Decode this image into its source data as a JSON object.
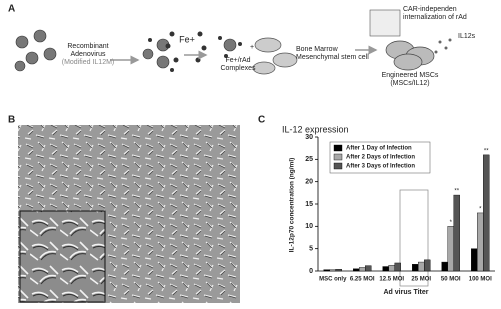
{
  "panels": [
    "A",
    "B",
    "C"
  ],
  "diagram": {
    "virus": [
      "Recombinant",
      "Adenovirus",
      "(Modified IL12M)"
    ],
    "iron": "Fe+",
    "complex": [
      "Fe+/rAd",
      "Complexes"
    ],
    "msc": [
      "Bone Marrow",
      "Mesenchymal stem cell"
    ],
    "internalization": [
      "CAR-independen",
      "internalization of rAd"
    ],
    "secreted": "IL12s",
    "engineered": [
      "Engineered MSCs",
      "(MSCs/IL12)"
    ]
  },
  "chart_data": {
    "type": "bar",
    "title": "IL-12 expression",
    "y_label": "IL-12p70 concentration (ng/ml)",
    "x_label": "Ad virus Titer",
    "categories": [
      "MSC only",
      "6.25 MOI",
      "12.5 MOI",
      "25 MOI",
      "50 MOI",
      "100 MOI"
    ],
    "series": [
      {
        "name": "After 1 Day of Infection",
        "color": "#000000",
        "values": [
          0.3,
          0.5,
          1.0,
          1.5,
          2.0,
          5.0
        ],
        "significance": [
          null,
          null,
          null,
          null,
          null,
          null
        ]
      },
      {
        "name": "After 2 Days of Infection",
        "color": "#a8a8a8",
        "values": [
          0.3,
          0.8,
          1.3,
          2.0,
          10,
          13
        ],
        "significance": [
          null,
          null,
          null,
          null,
          "*",
          "*"
        ]
      },
      {
        "name": "After 3 Days of Infection",
        "color": "#555555",
        "values": [
          0.4,
          1.2,
          1.8,
          2.5,
          17,
          26
        ],
        "significance": [
          null,
          null,
          null,
          null,
          "**",
          "**"
        ]
      }
    ],
    "ylim": [
      0,
      30
    ],
    "yticks": [
      0,
      5,
      10,
      15,
      20,
      25,
      30
    ],
    "grid": false,
    "legend": "top-left"
  }
}
